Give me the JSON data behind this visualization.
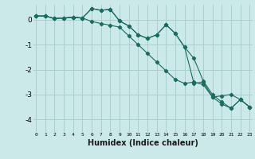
{
  "x": [
    0,
    1,
    2,
    3,
    4,
    5,
    6,
    7,
    8,
    9,
    10,
    11,
    12,
    13,
    14,
    15,
    16,
    17,
    18,
    19,
    20,
    21,
    22,
    23
  ],
  "line1": [
    0.15,
    0.15,
    0.05,
    0.07,
    0.1,
    0.07,
    0.45,
    0.38,
    0.42,
    -0.05,
    -0.25,
    -0.6,
    -0.75,
    -0.6,
    -0.2,
    -0.55,
    -1.1,
    -1.55,
    -2.45,
    -3.0,
    -3.3,
    -3.55,
    -3.2,
    -3.5
  ],
  "line2": [
    0.15,
    0.15,
    0.05,
    0.07,
    0.1,
    0.07,
    0.45,
    0.38,
    0.42,
    -0.05,
    -0.25,
    -0.6,
    -0.75,
    -0.6,
    -0.2,
    -0.55,
    -1.1,
    -2.55,
    -2.5,
    -3.1,
    -3.38,
    -3.55,
    -3.2,
    -3.5
  ],
  "line3": [
    0.15,
    0.15,
    0.05,
    0.07,
    0.1,
    0.07,
    -0.07,
    -0.15,
    -0.22,
    -0.3,
    -0.65,
    -1.0,
    -1.35,
    -1.7,
    -2.05,
    -2.4,
    -2.55,
    -2.5,
    -2.6,
    -3.1,
    -3.05,
    -3.0,
    -3.2,
    -3.5
  ],
  "bg_color": "#cce9e9",
  "grid_color": "#aacfcf",
  "line_color": "#1a6b60",
  "xlabel": "Humidex (Indice chaleur)",
  "ylim": [
    -4.5,
    0.6
  ],
  "yticks": [
    0,
    -1,
    -2,
    -3,
    -4
  ],
  "xticks": [
    0,
    1,
    2,
    3,
    4,
    5,
    6,
    7,
    8,
    9,
    10,
    11,
    12,
    13,
    14,
    15,
    16,
    17,
    18,
    19,
    20,
    21,
    22,
    23
  ]
}
